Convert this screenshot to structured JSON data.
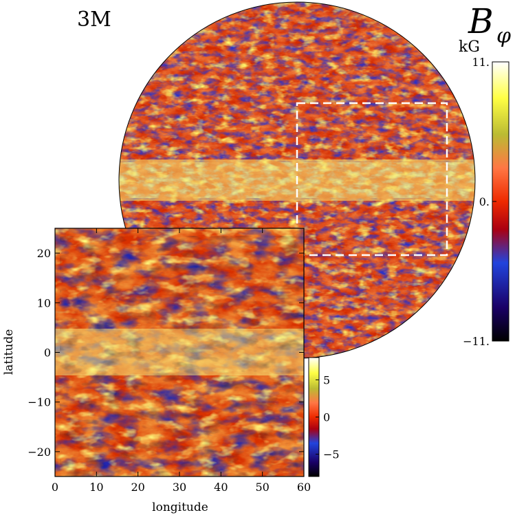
{
  "figure": {
    "run_label": "3M",
    "quantity_symbol": "B",
    "quantity_subscript": "φ",
    "unit": "kG"
  },
  "chart_data": [
    {
      "type": "heatmap",
      "title": "",
      "projection": "orthographic-globe",
      "colorscale": "red-temperature",
      "colorbar": {
        "range": [
          -11,
          11
        ],
        "tick_labels": [
          "11.",
          "0.",
          "−11."
        ],
        "tick_values": [
          11,
          0,
          -11
        ]
      },
      "annotations": [
        {
          "kind": "dashed-rectangle",
          "color": "#ffffff",
          "meaning": "region shown in zoom panel"
        }
      ]
    },
    {
      "type": "heatmap",
      "title": "",
      "xlabel": "longitude",
      "ylabel": "latitude",
      "xlim": [
        0,
        60
      ],
      "ylim": [
        -25,
        25
      ],
      "x_ticks": [
        0,
        10,
        20,
        30,
        40,
        50,
        60
      ],
      "y_ticks": [
        20,
        10,
        0,
        -10,
        -20
      ],
      "x_tick_labels": [
        "0",
        "10",
        "20",
        "30",
        "40",
        "50",
        "60"
      ],
      "y_tick_labels": [
        "20",
        "10",
        "0",
        "−10",
        "−20"
      ],
      "colorscale": "red-temperature",
      "colorbar": {
        "range": [
          -8,
          8
        ],
        "tick_values": [
          5,
          0,
          -5
        ],
        "tick_labels": [
          "5",
          "0",
          "−5"
        ]
      }
    }
  ],
  "colors": {
    "scale_stops": [
      "#000000",
      "#1a0066",
      "#2244dd",
      "#aa0011",
      "#ee2a00",
      "#ff7744",
      "#bbbb33",
      "#ffff44",
      "#ffffff"
    ]
  }
}
